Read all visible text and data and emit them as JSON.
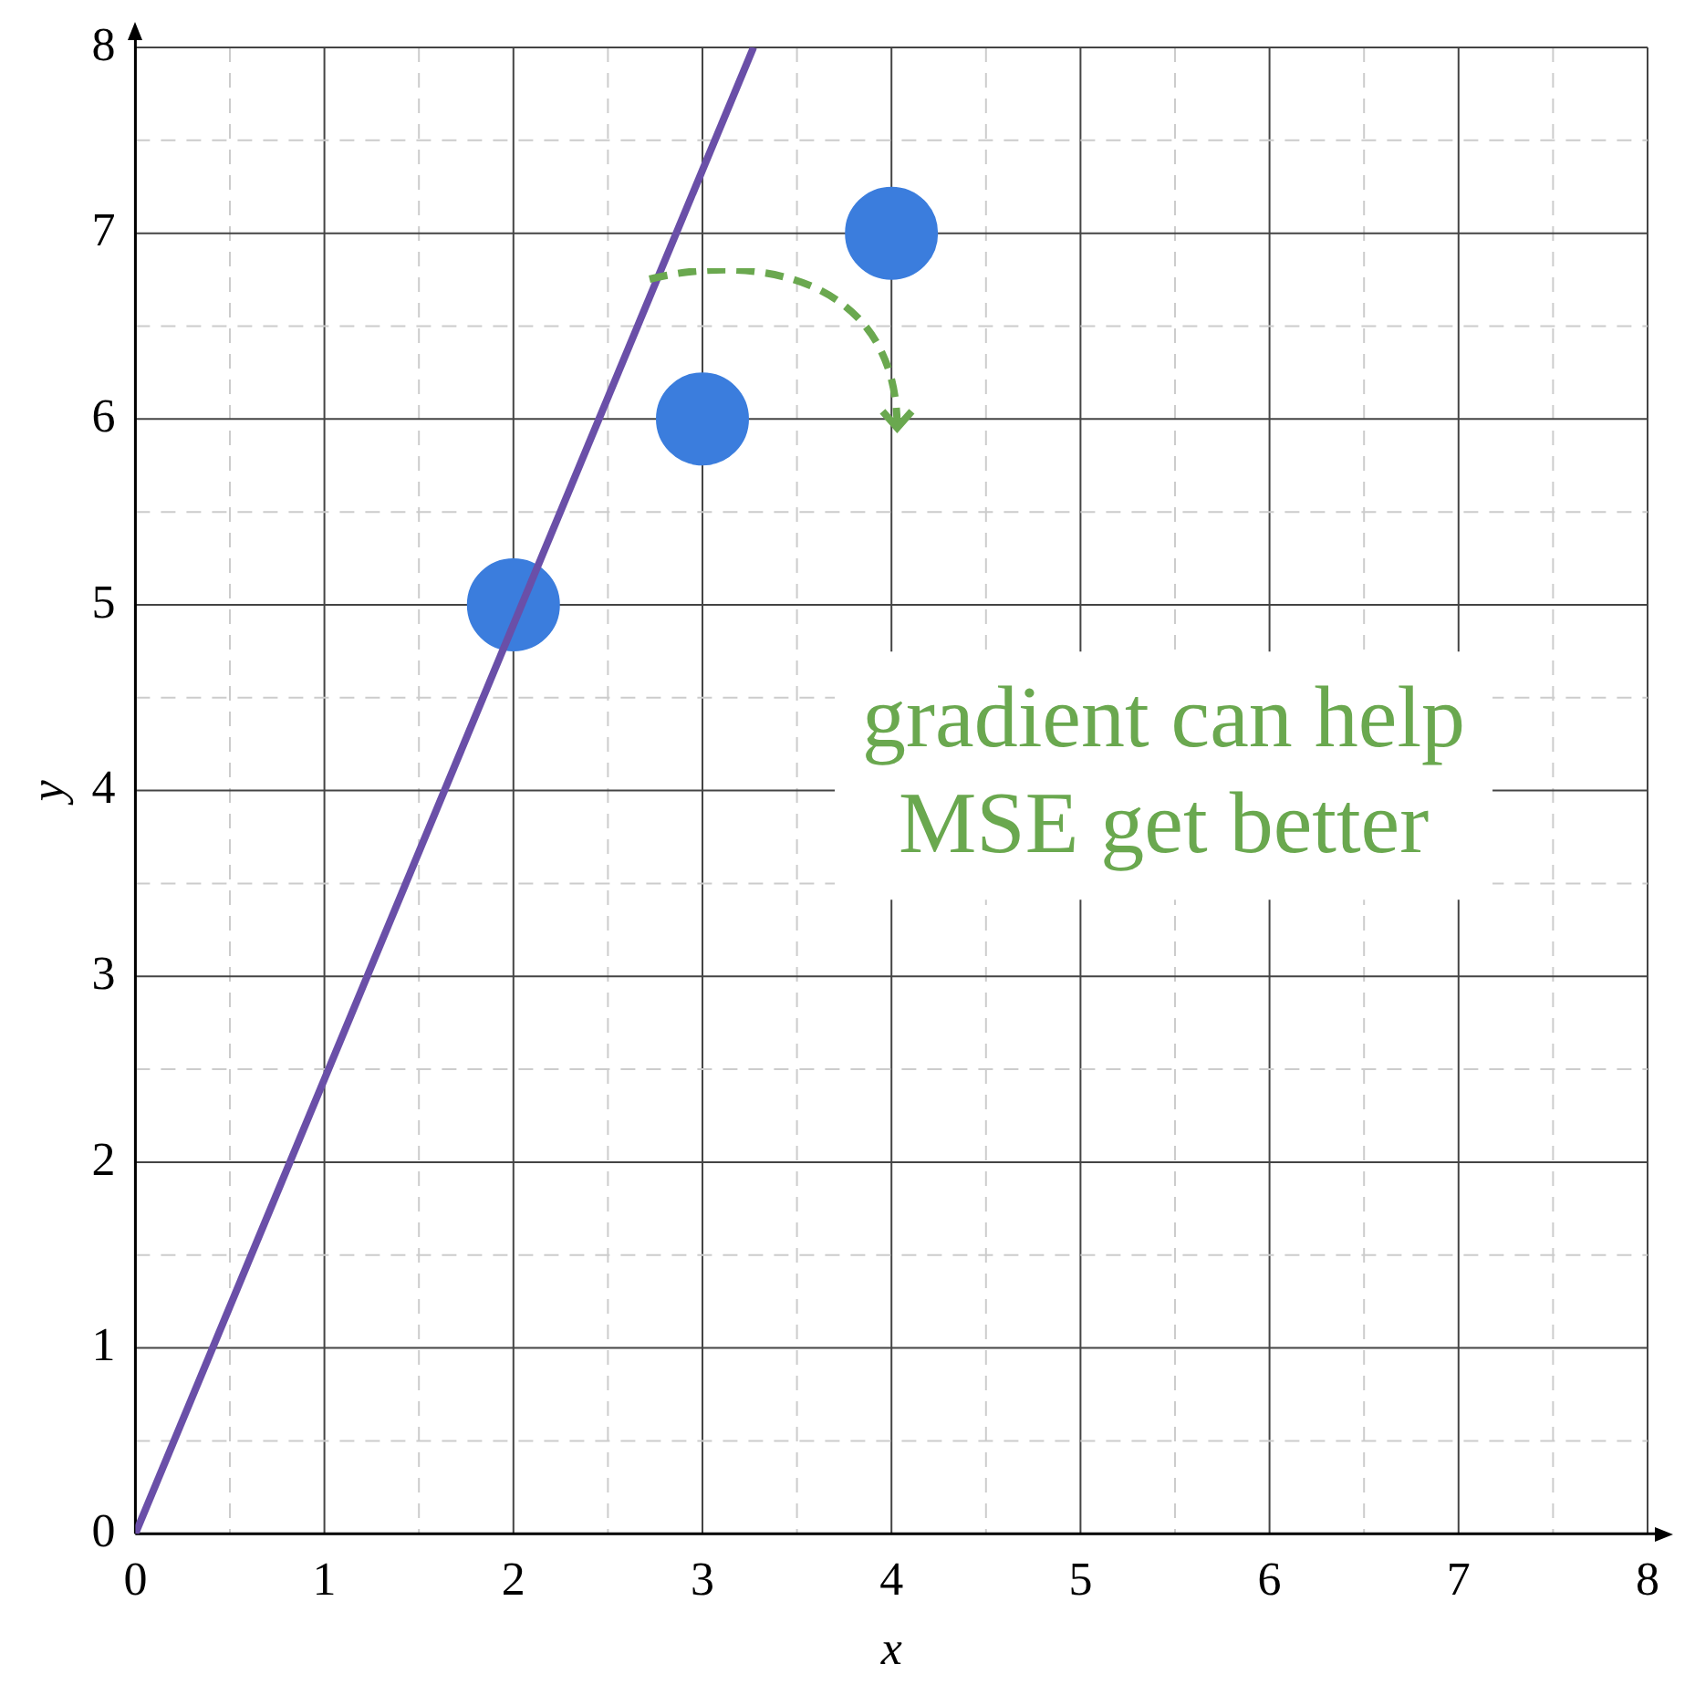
{
  "chart_data": {
    "type": "scatter",
    "xlabel": "x",
    "ylabel": "y",
    "xlim": [
      0,
      8
    ],
    "ylim": [
      0,
      8
    ],
    "xticks": [
      0,
      {
        "value": 0.5,
        "label": null
      },
      1,
      {
        "value": 1.5,
        "label": null
      },
      2,
      {
        "value": 2.5,
        "label": null
      },
      3,
      {
        "value": 3.5,
        "label": null
      },
      4,
      {
        "value": 4.5,
        "label": null
      },
      5,
      {
        "value": 5.5,
        "label": null
      },
      6,
      {
        "value": 6.5,
        "label": null
      },
      7,
      {
        "value": 7.5,
        "label": null
      },
      8
    ],
    "yticks": [
      0,
      {
        "value": 0.5,
        "label": null
      },
      1,
      {
        "value": 1.5,
        "label": null
      },
      2,
      {
        "value": 2.5,
        "label": null
      },
      3,
      {
        "value": 3.5,
        "label": null
      },
      4,
      {
        "value": 4.5,
        "label": null
      },
      5,
      {
        "value": 5.5,
        "label": null
      },
      6,
      {
        "value": 6.5,
        "label": null
      },
      7,
      {
        "value": 7.5,
        "label": null
      },
      8
    ],
    "grid": true,
    "legend": false,
    "series": [
      {
        "type": "line",
        "color": "#6a4fa8",
        "x": [
          0,
          3.27
        ],
        "values": [
          0,
          8
        ],
        "marker": "none",
        "line_style": "solid"
      },
      {
        "type": "scatter",
        "color": "#3b7ddd",
        "x": [
          2,
          3,
          4
        ],
        "values": [
          5,
          6,
          7
        ],
        "marker": "circle"
      }
    ],
    "annotations": [
      "gradient can help\nMSE get better"
    ]
  }
}
